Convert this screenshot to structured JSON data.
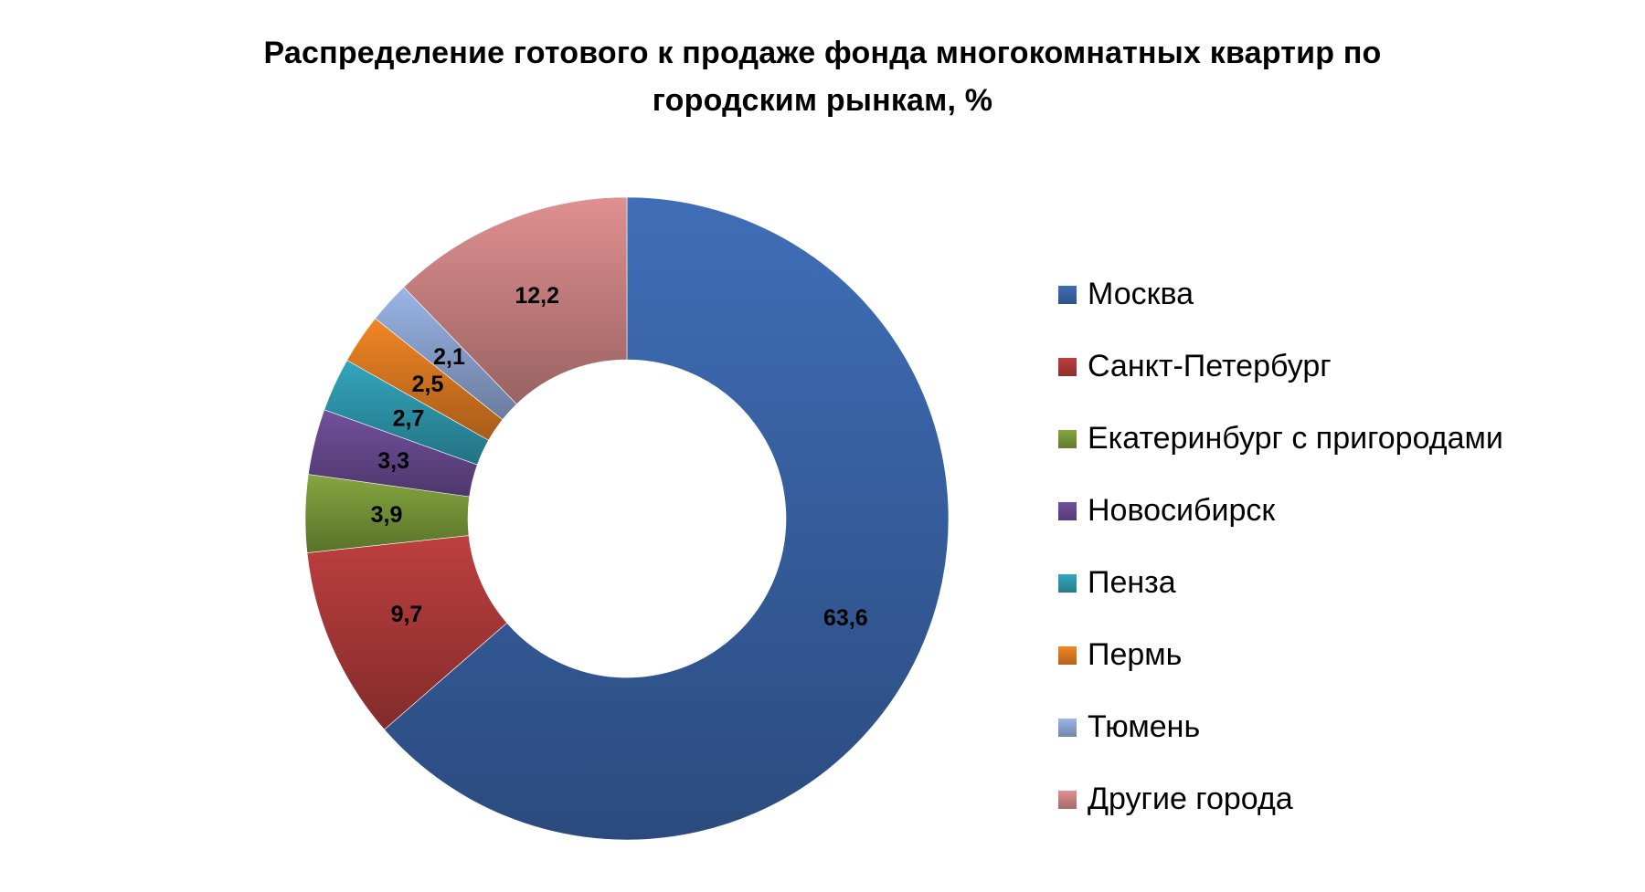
{
  "chart_data": {
    "type": "pie",
    "variant": "donut",
    "title_lines": [
      "Распределение готового к продаже фонда многокомнатных квартир по",
      "городским рынкам, %"
    ],
    "legend_position": "right",
    "slices": [
      {
        "label": "Москва",
        "value": 63.6,
        "display": "63,6",
        "color": "#3a66aa"
      },
      {
        "label": "Санкт-Петербург",
        "value": 9.7,
        "display": "9,7",
        "color": "#b03a3a"
      },
      {
        "label": "Екатеринбург с пригородами",
        "value": 3.9,
        "display": "3,9",
        "color": "#7a9a3a"
      },
      {
        "label": "Новосибирск",
        "value": 3.3,
        "display": "3,3",
        "color": "#6a4a92"
      },
      {
        "label": "Пенза",
        "value": 2.7,
        "display": "2,7",
        "color": "#2f9ab0"
      },
      {
        "label": "Пермь",
        "value": 2.5,
        "display": "2,5",
        "color": "#e07c22"
      },
      {
        "label": "Тюмень",
        "value": 2.1,
        "display": "2,1",
        "color": "#8fa8d6"
      },
      {
        "label": "Другие города",
        "value": 12.2,
        "display": "12,2",
        "color": "#cf8585"
      }
    ]
  }
}
